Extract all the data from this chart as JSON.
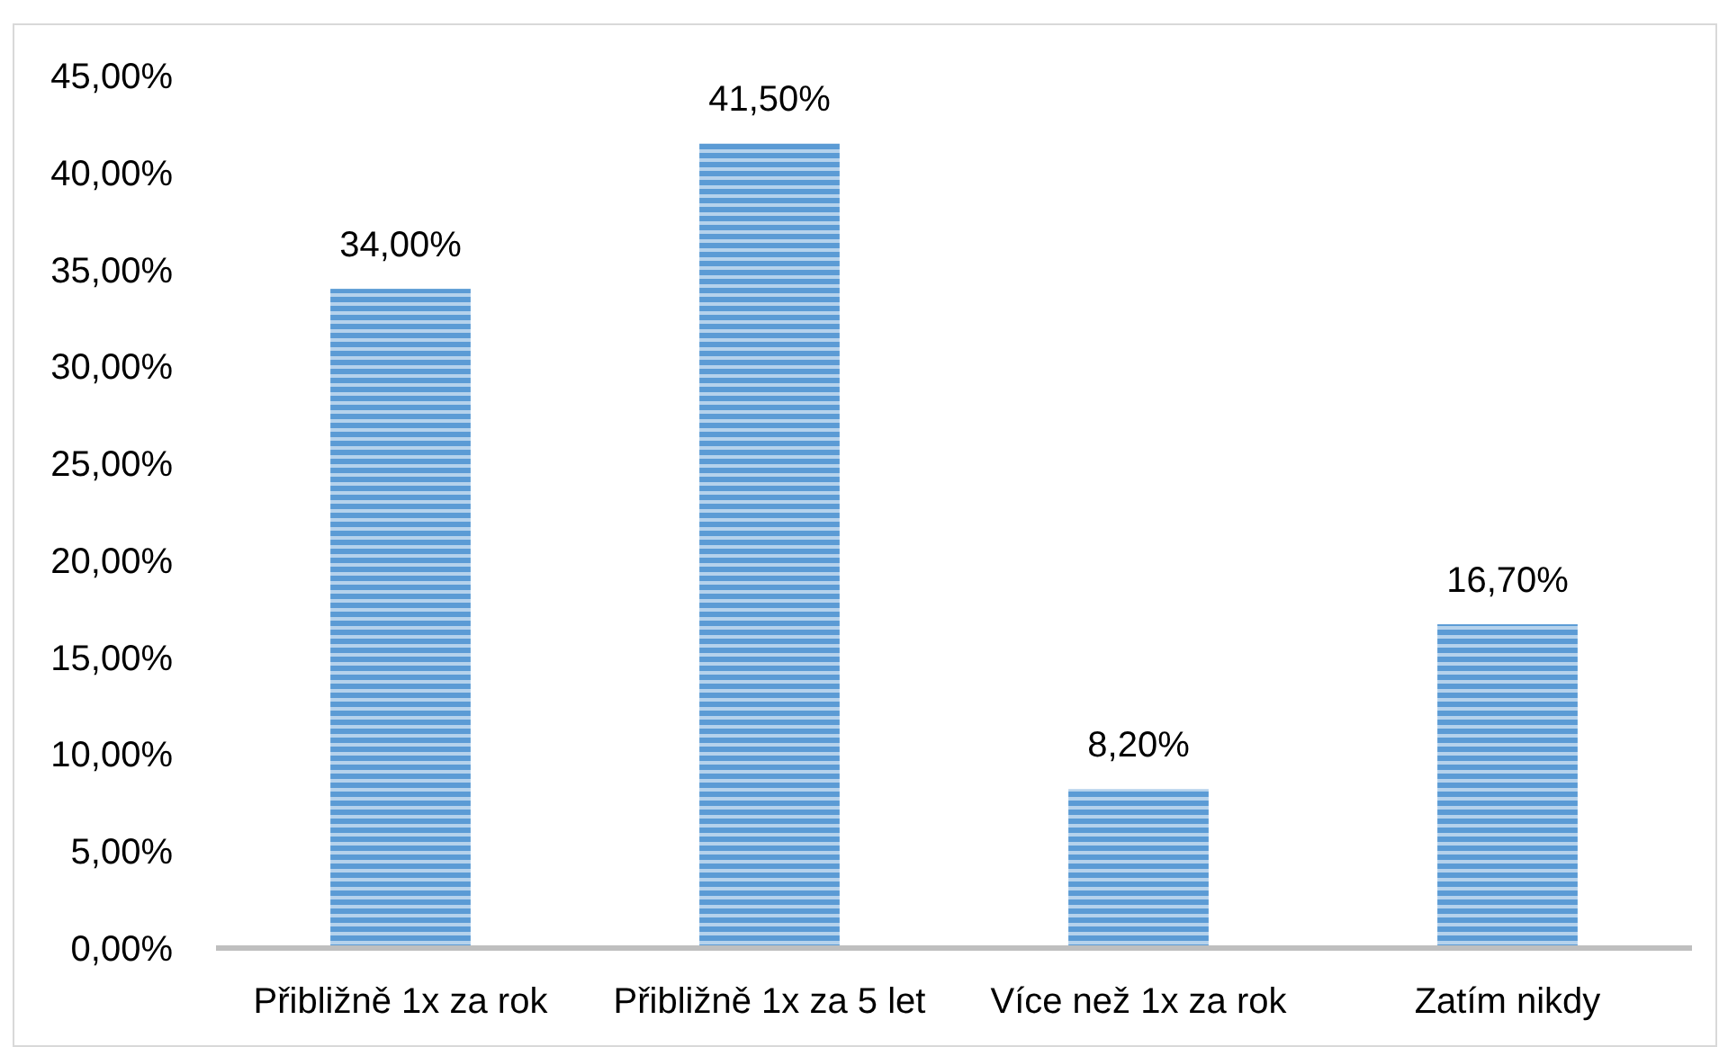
{
  "chart_data": {
    "type": "bar",
    "categories": [
      "Přibližně 1x za rok",
      "Přibližně 1x za 5 let",
      "Více než 1x za rok",
      "Zatím nikdy"
    ],
    "values": [
      34,
      41.5,
      8.2,
      16.7
    ],
    "value_labels": [
      "34,00%",
      "41,50%",
      "8,20%",
      "16,70%"
    ],
    "color": "#5b9bd5",
    "ylim": [
      0,
      45
    ],
    "yticks": [
      {
        "value": 0,
        "label": "0,00%"
      },
      {
        "value": 5,
        "label": "5,00%"
      },
      {
        "value": 10,
        "label": "10,00%"
      },
      {
        "value": 15,
        "label": "15,00%"
      },
      {
        "value": 20,
        "label": "20,00%"
      },
      {
        "value": 25,
        "label": "25,00%"
      },
      {
        "value": 30,
        "label": "30,00%"
      },
      {
        "value": 35,
        "label": "35,00%"
      },
      {
        "value": 40,
        "label": "40,00%"
      },
      {
        "value": 45,
        "label": "45,00%"
      }
    ]
  }
}
